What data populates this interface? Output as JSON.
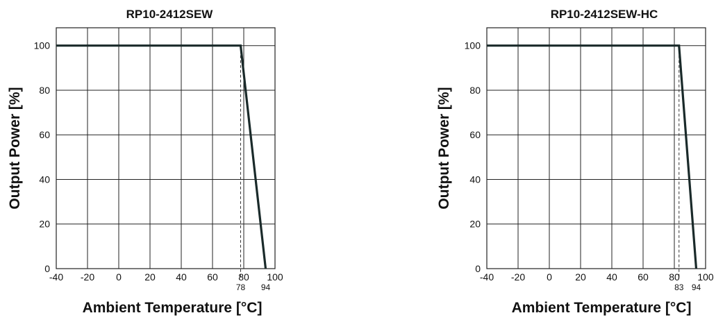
{
  "chart_data": [
    {
      "type": "line",
      "title": "RP10-2412SEW",
      "xlabel": "Ambient Temperature [°C]",
      "ylabel": "Output Power [%]",
      "xlim": [
        -40,
        100
      ],
      "ylim": [
        0,
        108
      ],
      "x_ticks": [
        "-40",
        "-20",
        "0",
        "20",
        "40",
        "60",
        "80",
        "100"
      ],
      "y_ticks": [
        "0",
        "20",
        "40",
        "60",
        "80",
        "100"
      ],
      "grid": true,
      "series": [
        {
          "x": [
            -40,
            78,
            94
          ],
          "values": [
            100,
            100,
            0
          ]
        }
      ],
      "annotations": [
        {
          "x": 78,
          "label": "78"
        },
        {
          "x": 94,
          "label": "94"
        }
      ]
    },
    {
      "type": "line",
      "title": "RP10-2412SEW-HC",
      "xlabel": "Ambient Temperature [°C]",
      "ylabel": "Output Power [%]",
      "xlim": [
        -40,
        100
      ],
      "ylim": [
        0,
        108
      ],
      "x_ticks": [
        "-40",
        "-20",
        "0",
        "20",
        "40",
        "60",
        "80",
        "100"
      ],
      "y_ticks": [
        "0",
        "20",
        "40",
        "60",
        "80",
        "100"
      ],
      "grid": true,
      "series": [
        {
          "x": [
            -40,
            83,
            94
          ],
          "values": [
            100,
            100,
            0
          ]
        }
      ],
      "annotations": [
        {
          "x": 83,
          "label": "83"
        },
        {
          "x": 94,
          "label": "94"
        }
      ]
    }
  ]
}
